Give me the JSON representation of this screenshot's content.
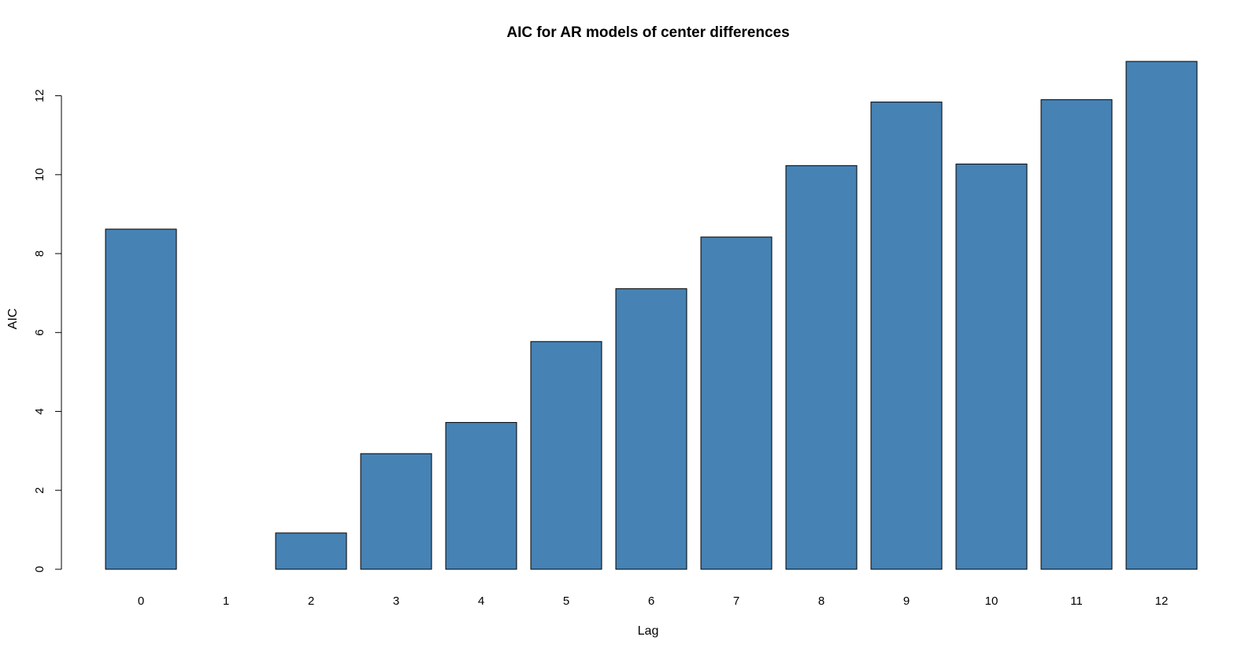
{
  "chart_data": {
    "type": "bar",
    "title": "AIC for AR models of center differences",
    "xlabel": "Lag",
    "ylabel": "AIC",
    "categories": [
      "0",
      "1",
      "2",
      "3",
      "4",
      "5",
      "6",
      "7",
      "8",
      "9",
      "10",
      "11",
      "12"
    ],
    "values": [
      8.62,
      0.0,
      0.92,
      2.93,
      3.72,
      5.77,
      7.11,
      8.42,
      10.23,
      11.84,
      10.27,
      11.9,
      12.87
    ],
    "yticks": [
      0,
      2,
      4,
      6,
      8,
      10,
      12
    ],
    "ylim": [
      0,
      12.87
    ],
    "bar_color": "#4682b4",
    "grid": false
  }
}
